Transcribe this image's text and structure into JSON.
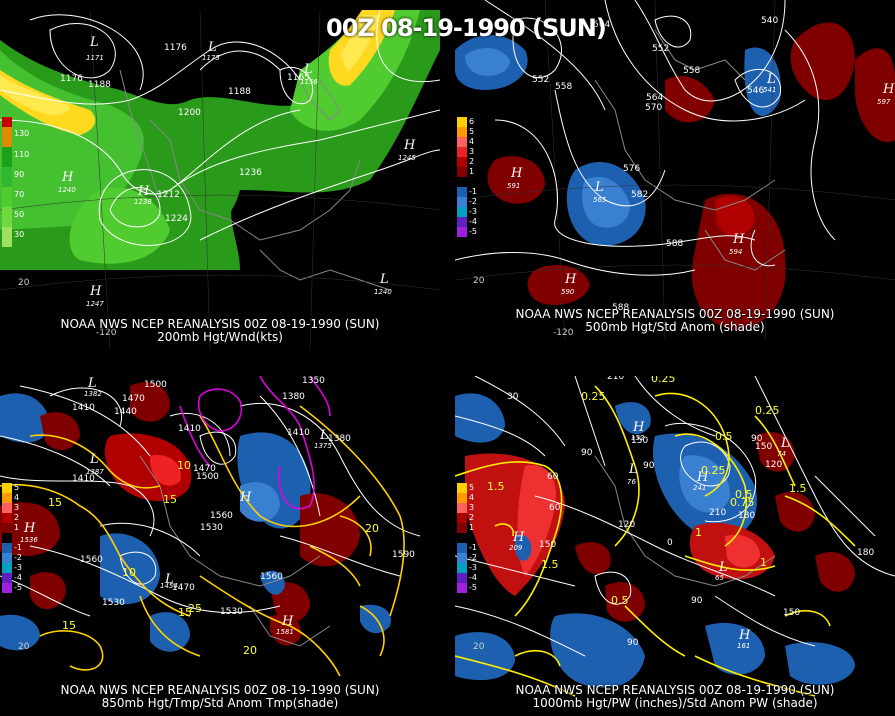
{
  "main_title": "00Z 08-19-1990 (SUN)",
  "panels": [
    {
      "header": "NOAA NWS NCEP REANALYSIS 00Z 08-19-1990 (SUN)",
      "subtitle": "200mb Hgt/Wnd(kts)",
      "legend": [
        "130",
        "110",
        "90",
        "70",
        "50",
        "30"
      ],
      "legend_colors": [
        "#c80000",
        "#e08a00",
        "#1aa01a",
        "#30b830",
        "#50cc30",
        "#70d840"
      ],
      "contours": [
        "1176",
        "1176",
        "1188",
        "1188",
        "1200",
        "1212",
        "1224",
        "1236",
        "1165",
        "1176"
      ],
      "centers": [
        {
          "type": "L",
          "value": "1171"
        },
        {
          "type": "L",
          "value": "1175"
        },
        {
          "type": "L",
          "value": "1156"
        },
        {
          "type": "H",
          "value": "1240"
        },
        {
          "type": "H",
          "value": "1245"
        },
        {
          "type": "H",
          "value": "1247"
        },
        {
          "type": "L",
          "value": "1240"
        },
        {
          "type": "H",
          "value": "1238"
        }
      ],
      "axis_labels": [
        "20",
        "-120",
        "30"
      ]
    },
    {
      "header": "NOAA NWS NCEP REANALYSIS 00Z 08-19-1990 (SUN)",
      "subtitle": "500mb Hgt/Std Anom (shade)",
      "legend": [
        "6",
        "5",
        "4",
        "3",
        "2",
        "1",
        "-1",
        "-2",
        "-3",
        "-4",
        "-5"
      ],
      "legend_colors": [
        "#ffd000",
        "#ff9a00",
        "#ff6060",
        "#ee2222",
        "#b00000",
        "#800000",
        "#1e60b0",
        "#3a80d0",
        "#00a0c0",
        "#6020c0",
        "#a020e0"
      ],
      "contours": [
        "564",
        "540",
        "546",
        "552",
        "558",
        "564",
        "570",
        "576",
        "582",
        "588",
        "588",
        "558",
        "552"
      ],
      "centers": [
        {
          "type": "H",
          "value": "591"
        },
        {
          "type": "H",
          "value": "590"
        },
        {
          "type": "L",
          "value": "565"
        },
        {
          "type": "H",
          "value": "594"
        },
        {
          "type": "L",
          "value": "541"
        },
        {
          "type": "H",
          "value": "597"
        },
        {
          "type": "L",
          "value": "546"
        }
      ],
      "axis_labels": [
        "20",
        "-120"
      ]
    },
    {
      "header": "NOAA NWS NCEP REANALYSIS 00Z 08-19-1990 (SUN)",
      "subtitle": "850mb Hgt/Tmp/Std Anom Tmp(shade)",
      "legend": [
        "5",
        "4",
        "3",
        "2",
        "1",
        "-1",
        "-2",
        "-3",
        "-4",
        "-5"
      ],
      "legend_colors": [
        "#ffd000",
        "#ff9a00",
        "#ff6060",
        "#b00000",
        "#800000",
        "#1e60b0",
        "#3a80d0",
        "#00a0c0",
        "#6020c0",
        "#a020e0"
      ],
      "contours": [
        "1500",
        "1350",
        "1410",
        "1440",
        "1470",
        "1380",
        "1410",
        "1410",
        "1380",
        "1410",
        "1470",
        "1500",
        "1560",
        "1530",
        "1560",
        "1530",
        "1560",
        "1590",
        "1470",
        "1530"
      ],
      "temps": [
        "15",
        "10",
        "15",
        "10",
        "25",
        "20",
        "15",
        "20",
        "15"
      ],
      "centers": [
        {
          "type": "L",
          "value": "1382"
        },
        {
          "type": "L",
          "value": "1387"
        },
        {
          "type": "H",
          "value": "1536"
        },
        {
          "type": "L",
          "value": "1375"
        },
        {
          "type": "H",
          "value": "1581"
        },
        {
          "type": "L",
          "value": "1454"
        }
      ],
      "axis_labels": [
        "20"
      ]
    },
    {
      "header": "NOAA NWS NCEP REANALYSIS 00Z 08-19-1990 (SUN)",
      "subtitle": "1000mb Hgt/PW (inches)/Std Anom PW (shade)",
      "legend": [
        "5",
        "4",
        "3",
        "2",
        "1",
        "-1",
        "-2",
        "-3",
        "-4",
        "-5"
      ],
      "legend_colors": [
        "#ffd000",
        "#ff9a00",
        "#ff6060",
        "#b00000",
        "#800000",
        "#1e60b0",
        "#3a80d0",
        "#00a0c0",
        "#6020c0",
        "#a020e0"
      ],
      "contours": [
        "210",
        "150",
        "90",
        "60",
        "90",
        "120",
        "150",
        "180",
        "210",
        "90",
        "120",
        "60",
        "150",
        "90",
        "180",
        "150",
        "90",
        "30",
        "0"
      ],
      "pw": [
        "0.25",
        "0.25",
        "0.5",
        "0.25",
        "0.5",
        "0.75",
        "1",
        "1.5",
        "1.5",
        "1",
        "0.5",
        "1.5",
        "0.25"
      ],
      "centers": [
        {
          "type": "L",
          "value": "76"
        },
        {
          "type": "H",
          "value": "209"
        },
        {
          "type": "H",
          "value": "241"
        },
        {
          "type": "L",
          "value": "65"
        },
        {
          "type": "H",
          "value": "161"
        },
        {
          "type": "H",
          "value": "152"
        },
        {
          "type": "L",
          "value": "74"
        }
      ],
      "axis_labels": [
        "20"
      ]
    }
  ]
}
